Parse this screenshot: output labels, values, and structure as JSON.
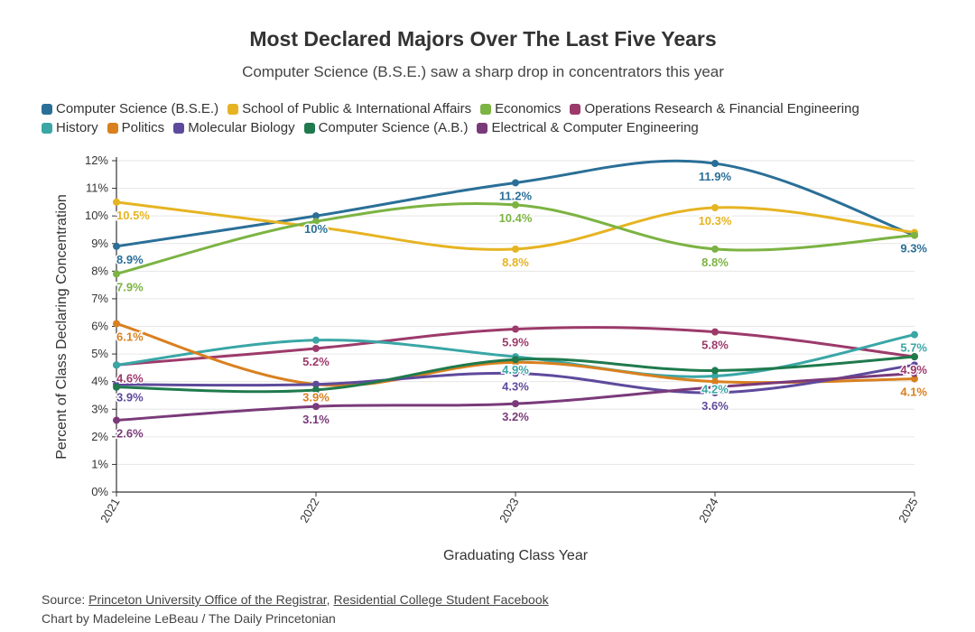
{
  "chart_data": {
    "type": "line",
    "title": "Most Declared Majors Over The Last Five Years",
    "subtitle": "Computer Science (B.S.E.) saw a sharp drop in concentrators this year",
    "xlabel": "Graduating Class Year",
    "ylabel": "Percent of Class Declaring Concentration",
    "x": [
      "2021",
      "2022",
      "2023",
      "2024",
      "2025"
    ],
    "ylim": [
      0,
      12
    ],
    "yticks": [
      "0%",
      "1%",
      "2%",
      "3%",
      "4%",
      "5%",
      "6%",
      "7%",
      "8%",
      "9%",
      "10%",
      "11%",
      "12%"
    ],
    "grid": true,
    "legend_position": "top",
    "series": [
      {
        "name": "Computer Science (B.S.E.)",
        "color": "#2a6f97",
        "values": [
          8.9,
          10,
          11.2,
          11.9,
          9.3
        ],
        "labels": [
          "8.9%",
          "10%",
          "11.2%",
          "11.9%",
          "9.3%"
        ]
      },
      {
        "name": "School of Public & International Affairs",
        "color": "#e6b422",
        "values": [
          10.5,
          9.6,
          8.8,
          10.3,
          9.4
        ],
        "labels": [
          "10.5%",
          "",
          "8.8%",
          "10.3%",
          ""
        ]
      },
      {
        "name": "Economics",
        "color": "#7cb342",
        "values": [
          7.9,
          9.8,
          10.4,
          8.8,
          9.3
        ],
        "labels": [
          "7.9%",
          "",
          "10.4%",
          "8.8%",
          ""
        ]
      },
      {
        "name": "Operations Research & Financial Engineering",
        "color": "#9c3a6b",
        "values": [
          4.6,
          5.2,
          5.9,
          5.8,
          4.9
        ],
        "labels": [
          "4.6%",
          "5.2%",
          "5.9%",
          "5.8%",
          "4.9%"
        ]
      },
      {
        "name": "History",
        "color": "#3aa6a6",
        "values": [
          4.6,
          5.5,
          4.9,
          4.2,
          5.7
        ],
        "labels": [
          "",
          "",
          "4.9%",
          "4.2%",
          "5.7%"
        ]
      },
      {
        "name": "Politics",
        "color": "#d9801f",
        "values": [
          6.1,
          3.9,
          4.7,
          4.0,
          4.1
        ],
        "labels": [
          "6.1%",
          "3.9%",
          "",
          "",
          "4.1%"
        ]
      },
      {
        "name": "Molecular Biology",
        "color": "#5e4a9c",
        "values": [
          3.9,
          3.9,
          4.3,
          3.6,
          4.6
        ],
        "labels": [
          "3.9%",
          "",
          "4.3%",
          "3.6%",
          ""
        ]
      },
      {
        "name": "Computer Science (A.B.)",
        "color": "#1f7a4d",
        "values": [
          3.8,
          3.7,
          4.8,
          4.4,
          4.9
        ],
        "labels": [
          "",
          "",
          "",
          "",
          ""
        ]
      },
      {
        "name": "Electrical & Computer Engineering",
        "color": "#7a3a7a",
        "values": [
          2.6,
          3.1,
          3.2,
          3.8,
          4.3
        ],
        "labels": [
          "2.6%",
          "3.1%",
          "3.2%",
          "",
          ""
        ]
      }
    ]
  },
  "footer": {
    "source_prefix": "Source: ",
    "source_link_1": "Princeton University Office of the Registrar",
    "source_sep": ", ",
    "source_link_2": "Residential College Student Facebook",
    "credit": "Chart by Madeleine LeBeau / The Daily Princetonian"
  }
}
